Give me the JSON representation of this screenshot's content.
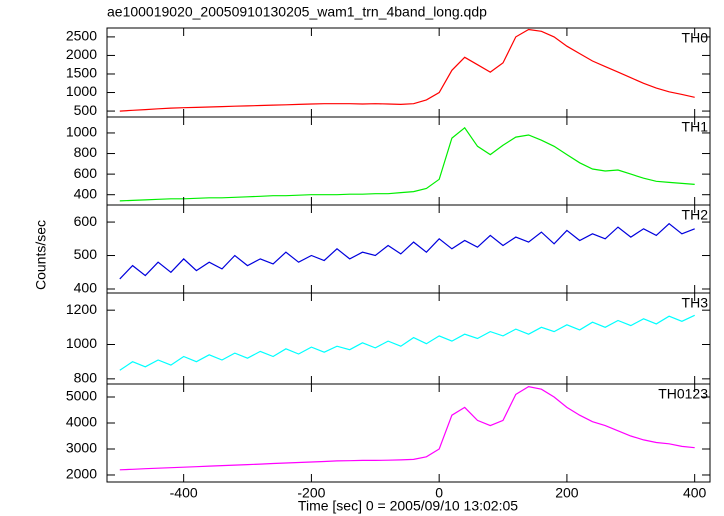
{
  "title": "ae100019020_20050910130205_wam1_trn_4band_long.qdp",
  "ylabel": "Counts/sec",
  "xlabel": "Time [sec] 0 = 2005/09/10 13:02:05",
  "chart_data": [
    {
      "type": "line",
      "x": [
        -500,
        -480,
        -460,
        -440,
        -420,
        -400,
        -380,
        -360,
        -340,
        -320,
        -300,
        -280,
        -260,
        -240,
        -220,
        -200,
        -180,
        -160,
        -140,
        -120,
        -100,
        -80,
        -60,
        -40,
        -20,
        0,
        20,
        40,
        60,
        80,
        100,
        120,
        140,
        160,
        180,
        200,
        220,
        240,
        260,
        280,
        300,
        320,
        340,
        360,
        380,
        400
      ],
      "xlim": [
        -520,
        424
      ],
      "xticks": [
        -400,
        -200,
        0,
        200,
        400
      ],
      "ylim": [
        340,
        2740
      ],
      "yticks": [
        500,
        1000,
        1500,
        2000,
        2500
      ],
      "series": [
        {
          "name": "TH0",
          "color": "#ff0000",
          "values": [
            500,
            520,
            540,
            560,
            580,
            590,
            600,
            610,
            620,
            630,
            640,
            650,
            660,
            670,
            680,
            690,
            700,
            700,
            700,
            690,
            700,
            690,
            680,
            700,
            800,
            1000,
            1600,
            1950,
            1750,
            1550,
            1800,
            2500,
            2700,
            2650,
            2500,
            2250,
            2050,
            1850,
            1700,
            1550,
            1400,
            1250,
            1120,
            1020,
            950,
            870
          ]
        }
      ]
    },
    {
      "type": "line",
      "x": [
        -500,
        -480,
        -460,
        -440,
        -420,
        -400,
        -380,
        -360,
        -340,
        -320,
        -300,
        -280,
        -260,
        -240,
        -220,
        -200,
        -180,
        -160,
        -140,
        -120,
        -100,
        -80,
        -60,
        -40,
        -20,
        0,
        20,
        40,
        60,
        80,
        100,
        120,
        140,
        160,
        180,
        200,
        220,
        240,
        260,
        280,
        300,
        320,
        340,
        360,
        380,
        400
      ],
      "xlim": [
        -520,
        424
      ],
      "xticks": [
        -400,
        -200,
        0,
        200,
        400
      ],
      "ylim": [
        300,
        1155
      ],
      "yticks": [
        400,
        600,
        800,
        1000
      ],
      "series": [
        {
          "name": "TH1",
          "color": "#00ee00",
          "values": [
            340,
            345,
            350,
            355,
            360,
            360,
            365,
            370,
            370,
            375,
            380,
            385,
            390,
            390,
            395,
            400,
            400,
            400,
            405,
            405,
            410,
            410,
            420,
            430,
            460,
            550,
            950,
            1050,
            870,
            790,
            880,
            960,
            980,
            930,
            870,
            790,
            710,
            650,
            630,
            640,
            600,
            560,
            530,
            520,
            510,
            500
          ]
        }
      ]
    },
    {
      "type": "line",
      "x": [
        -500,
        -480,
        -460,
        -440,
        -420,
        -400,
        -380,
        -360,
        -340,
        -320,
        -300,
        -280,
        -260,
        -240,
        -220,
        -200,
        -180,
        -160,
        -140,
        -120,
        -100,
        -80,
        -60,
        -40,
        -20,
        0,
        20,
        40,
        60,
        80,
        100,
        120,
        140,
        160,
        180,
        200,
        220,
        240,
        260,
        280,
        300,
        320,
        340,
        360,
        380,
        400
      ],
      "xlim": [
        -520,
        424
      ],
      "xticks": [
        -400,
        -200,
        0,
        200,
        400
      ],
      "ylim": [
        388,
        651
      ],
      "yticks": [
        400,
        500,
        600
      ],
      "series": [
        {
          "name": "TH2",
          "color": "#0000dd",
          "values": [
            430,
            470,
            440,
            480,
            450,
            490,
            455,
            480,
            460,
            500,
            470,
            490,
            475,
            510,
            480,
            500,
            485,
            520,
            490,
            510,
            500,
            530,
            505,
            540,
            510,
            550,
            520,
            545,
            525,
            560,
            530,
            555,
            540,
            570,
            535,
            575,
            545,
            565,
            550,
            585,
            555,
            580,
            560,
            595,
            565,
            580
          ]
        }
      ]
    },
    {
      "type": "line",
      "x": [
        -500,
        -480,
        -460,
        -440,
        -420,
        -400,
        -380,
        -360,
        -340,
        -320,
        -300,
        -280,
        -260,
        -240,
        -220,
        -200,
        -180,
        -160,
        -140,
        -120,
        -100,
        -80,
        -60,
        -40,
        -20,
        0,
        20,
        40,
        60,
        80,
        100,
        120,
        140,
        160,
        180,
        200,
        220,
        240,
        260,
        280,
        300,
        320,
        340,
        360,
        380,
        400
      ],
      "xlim": [
        -520,
        424
      ],
      "xticks": [
        -400,
        -200,
        0,
        200,
        400
      ],
      "ylim": [
        770,
        1300
      ],
      "yticks": [
        800,
        1000,
        1200
      ],
      "series": [
        {
          "name": "TH3",
          "color": "#00ffff",
          "values": [
            850,
            900,
            870,
            910,
            880,
            930,
            900,
            940,
            910,
            950,
            920,
            960,
            930,
            975,
            945,
            985,
            955,
            990,
            970,
            1010,
            980,
            1020,
            990,
            1040,
            1005,
            1050,
            1020,
            1060,
            1035,
            1075,
            1050,
            1090,
            1060,
            1100,
            1075,
            1115,
            1085,
            1130,
            1100,
            1140,
            1110,
            1150,
            1120,
            1165,
            1135,
            1170
          ]
        }
      ]
    },
    {
      "type": "line",
      "x": [
        -500,
        -480,
        -460,
        -440,
        -420,
        -400,
        -380,
        -360,
        -340,
        -320,
        -300,
        -280,
        -260,
        -240,
        -220,
        -200,
        -180,
        -160,
        -140,
        -120,
        -100,
        -80,
        -60,
        -40,
        -20,
        0,
        20,
        40,
        60,
        80,
        100,
        120,
        140,
        160,
        180,
        200,
        220,
        240,
        260,
        280,
        300,
        320,
        340,
        360,
        380,
        400
      ],
      "xlim": [
        -520,
        424
      ],
      "xticks": [
        -400,
        -200,
        0,
        200,
        400
      ],
      "ylim": [
        1730,
        5500
      ],
      "yticks": [
        2000,
        3000,
        4000,
        5000
      ],
      "series": [
        {
          "name": "TH0123",
          "color": "#ff00ff",
          "values": [
            2200,
            2220,
            2240,
            2260,
            2280,
            2300,
            2320,
            2340,
            2360,
            2380,
            2400,
            2420,
            2440,
            2460,
            2480,
            2500,
            2520,
            2540,
            2550,
            2560,
            2560,
            2570,
            2580,
            2600,
            2700,
            3000,
            4300,
            4600,
            4100,
            3900,
            4100,
            5100,
            5400,
            5300,
            5000,
            4600,
            4300,
            4050,
            3900,
            3700,
            3500,
            3350,
            3250,
            3200,
            3100,
            3050
          ]
        }
      ]
    }
  ]
}
